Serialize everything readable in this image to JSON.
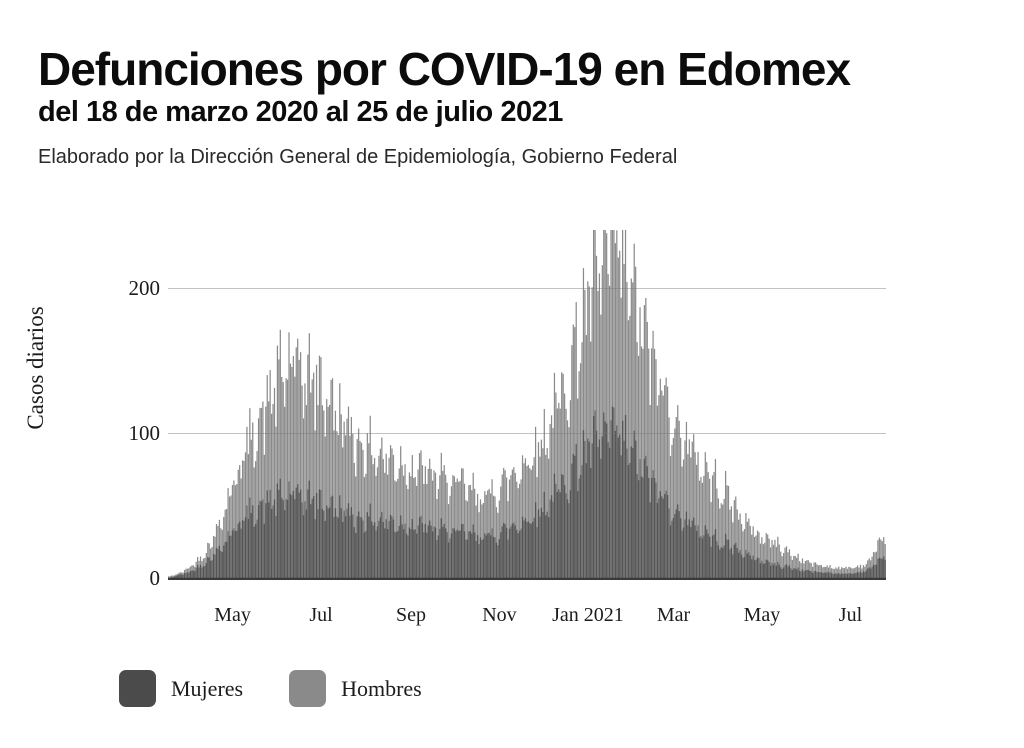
{
  "page": {
    "title": "Defunciones por COVID-19 en Edomex",
    "subtitle": "del 18 de marzo 2020 al 25 de julio 2021",
    "caption": "Elaborado por la Dirección General de Epidemiología, Gobierno Federal"
  },
  "legend": {
    "items": [
      {
        "key": "mujeres",
        "label": "Mujeres",
        "color": "#4b4b4b"
      },
      {
        "key": "hombres",
        "label": "Hombres",
        "color": "#8a8a8a"
      }
    ]
  },
  "chart_data": {
    "type": "bar",
    "title": "Defunciones por COVID-19 en Edomex del 18 de marzo 2020 al 25 de julio 2021",
    "ylabel": "Casos diarios",
    "xlabel": "",
    "yticks": [
      0,
      100,
      200
    ],
    "ylim": [
      0,
      245
    ],
    "grid": "horizontal",
    "legend_position": "bottom-left",
    "x_start_date": "2020-03-18",
    "x_end_date": "2021-07-25",
    "num_days": 495,
    "x_ticks": [
      {
        "label": "May",
        "day": 44
      },
      {
        "label": "Jul",
        "day": 105
      },
      {
        "label": "Sep",
        "day": 167
      },
      {
        "label": "Nov",
        "day": 228
      },
      {
        "label": "Jan 2021",
        "day": 289
      },
      {
        "label": "Mar",
        "day": 348
      },
      {
        "label": "May",
        "day": 409
      },
      {
        "label": "Jul",
        "day": 470
      }
    ],
    "values_note": "Daily bars estimated from pixels; anchor_days are day offsets from 2020-03-18 and anchor_values are the typical daily-death envelope read off the y-axis. Wave 1 peak ~170 (Hombres) early Jun 2020, wave 2 peak ~240 (Hombres) / ~100 (Mujeres) mid-Jan 2021, small uptick ~33 late Jul 2021.",
    "series": [
      {
        "name": "Hombres",
        "color": "#8a8a8a",
        "anchor_days": [
          0,
          7,
          14,
          21,
          28,
          35,
          42,
          49,
          56,
          63,
          70,
          77,
          84,
          91,
          98,
          105,
          112,
          119,
          126,
          133,
          140,
          147,
          154,
          161,
          168,
          175,
          182,
          189,
          196,
          203,
          210,
          217,
          224,
          231,
          238,
          245,
          252,
          259,
          266,
          273,
          280,
          287,
          294,
          301,
          308,
          315,
          322,
          329,
          336,
          343,
          350,
          357,
          364,
          371,
          378,
          385,
          392,
          399,
          406,
          413,
          420,
          427,
          434,
          441,
          448,
          455,
          462,
          469,
          476,
          483,
          490,
          494
        ],
        "anchor_values": [
          1,
          3,
          7,
          13,
          22,
          38,
          58,
          78,
          95,
          110,
          125,
          140,
          148,
          143,
          138,
          133,
          122,
          110,
          100,
          94,
          89,
          85,
          82,
          80,
          77,
          74,
          71,
          69,
          66,
          63,
          59,
          56,
          60,
          66,
          72,
          80,
          88,
          98,
          114,
          133,
          158,
          183,
          205,
          220,
          230,
          213,
          188,
          165,
          142,
          124,
          108,
          94,
          84,
          74,
          66,
          58,
          46,
          37,
          30,
          27,
          23,
          18,
          14,
          11,
          9,
          8,
          7,
          7,
          8,
          11,
          26,
          30
        ]
      },
      {
        "name": "Mujeres",
        "color": "#4b4b4b",
        "overlay_opacity": 0.85,
        "anchor_days": [
          0,
          7,
          14,
          21,
          28,
          35,
          42,
          49,
          56,
          63,
          70,
          77,
          84,
          91,
          98,
          105,
          112,
          119,
          126,
          133,
          140,
          147,
          154,
          161,
          168,
          175,
          182,
          189,
          196,
          203,
          210,
          217,
          224,
          231,
          238,
          245,
          252,
          259,
          266,
          273,
          280,
          287,
          294,
          301,
          308,
          315,
          322,
          329,
          336,
          343,
          350,
          357,
          364,
          371,
          378,
          385,
          392,
          399,
          406,
          413,
          420,
          427,
          434,
          441,
          448,
          455,
          462,
          469,
          476,
          483,
          490,
          494
        ],
        "anchor_values": [
          0,
          2,
          4,
          8,
          13,
          21,
          30,
          39,
          45,
          50,
          53,
          56,
          58,
          56,
          55,
          53,
          50,
          47,
          44,
          42,
          41,
          40,
          39,
          38,
          37,
          36,
          34,
          33,
          32,
          31,
          30,
          29,
          30,
          33,
          36,
          40,
          44,
          50,
          58,
          67,
          77,
          87,
          94,
          99,
          101,
          93,
          83,
          72,
          62,
          54,
          46,
          40,
          35,
          31,
          27,
          24,
          20,
          16,
          13,
          11,
          9,
          8,
          6,
          5,
          4,
          4,
          3,
          3,
          4,
          6,
          13,
          16
        ]
      }
    ],
    "noise": {
      "weekly_amplitude": 0.1,
      "random_amplitude": 0.18,
      "seed": 42
    },
    "grid_color": "#c9c9c9",
    "axis_color": "#3a3a3a"
  }
}
